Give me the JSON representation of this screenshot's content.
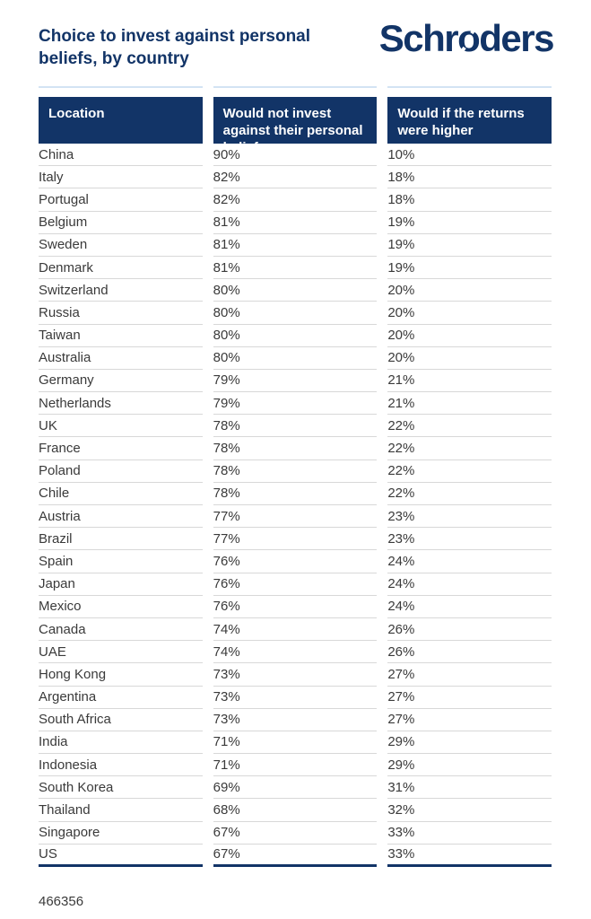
{
  "colors": {
    "navy": "#123467",
    "accent_light_blue": "#d3e3f4",
    "row_line": "#d8d8d8",
    "body_text": "#3a3a3a",
    "background": "#ffffff"
  },
  "header": {
    "title": "Choice to invest against personal beliefs, by country"
  },
  "logo": {
    "full": "Schroders",
    "part1": "Schr",
    "o": "o",
    "part2": "ders"
  },
  "table": {
    "columns": [
      "Location",
      "Would not invest against their personal beliefs",
      "Would if the returns were higher"
    ],
    "rows": [
      {
        "location": "China",
        "no_invest": "90%",
        "would_if_higher": "10%"
      },
      {
        "location": "Italy",
        "no_invest": "82%",
        "would_if_higher": "18%"
      },
      {
        "location": "Portugal",
        "no_invest": "82%",
        "would_if_higher": "18%"
      },
      {
        "location": "Belgium",
        "no_invest": "81%",
        "would_if_higher": "19%"
      },
      {
        "location": "Sweden",
        "no_invest": "81%",
        "would_if_higher": "19%"
      },
      {
        "location": "Denmark",
        "no_invest": "81%",
        "would_if_higher": "19%"
      },
      {
        "location": "Switzerland",
        "no_invest": "80%",
        "would_if_higher": "20%"
      },
      {
        "location": "Russia",
        "no_invest": "80%",
        "would_if_higher": "20%"
      },
      {
        "location": "Taiwan",
        "no_invest": "80%",
        "would_if_higher": "20%"
      },
      {
        "location": "Australia",
        "no_invest": "80%",
        "would_if_higher": "20%"
      },
      {
        "location": "Germany",
        "no_invest": "79%",
        "would_if_higher": "21%"
      },
      {
        "location": "Netherlands",
        "no_invest": "79%",
        "would_if_higher": "21%"
      },
      {
        "location": "UK",
        "no_invest": "78%",
        "would_if_higher": "22%"
      },
      {
        "location": "France",
        "no_invest": "78%",
        "would_if_higher": "22%"
      },
      {
        "location": "Poland",
        "no_invest": "78%",
        "would_if_higher": "22%"
      },
      {
        "location": "Chile",
        "no_invest": "78%",
        "would_if_higher": "22%"
      },
      {
        "location": "Austria",
        "no_invest": "77%",
        "would_if_higher": "23%"
      },
      {
        "location": "Brazil",
        "no_invest": "77%",
        "would_if_higher": "23%"
      },
      {
        "location": "Spain",
        "no_invest": "76%",
        "would_if_higher": "24%"
      },
      {
        "location": "Japan",
        "no_invest": "76%",
        "would_if_higher": "24%"
      },
      {
        "location": "Mexico",
        "no_invest": "76%",
        "would_if_higher": "24%"
      },
      {
        "location": "Canada",
        "no_invest": "74%",
        "would_if_higher": "26%"
      },
      {
        "location": "UAE",
        "no_invest": "74%",
        "would_if_higher": "26%"
      },
      {
        "location": "Hong Kong",
        "no_invest": "73%",
        "would_if_higher": "27%"
      },
      {
        "location": "Argentina",
        "no_invest": "73%",
        "would_if_higher": "27%"
      },
      {
        "location": "South Africa",
        "no_invest": "73%",
        "would_if_higher": "27%"
      },
      {
        "location": "India",
        "no_invest": "71%",
        "would_if_higher": "29%"
      },
      {
        "location": "Indonesia",
        "no_invest": "71%",
        "would_if_higher": "29%"
      },
      {
        "location": "South Korea",
        "no_invest": "69%",
        "would_if_higher": "31%"
      },
      {
        "location": "Thailand",
        "no_invest": "68%",
        "would_if_higher": "32%"
      },
      {
        "location": "Singapore",
        "no_invest": "67%",
        "would_if_higher": "33%"
      },
      {
        "location": "US",
        "no_invest": "67%",
        "would_if_higher": "33%"
      }
    ]
  },
  "footer": {
    "id": "466356"
  },
  "chart_data": {
    "type": "table",
    "title": "Choice to invest against personal beliefs, by country",
    "columns": [
      "Location",
      "Would not invest against their personal beliefs",
      "Would if the returns were higher"
    ],
    "categories": [
      "China",
      "Italy",
      "Portugal",
      "Belgium",
      "Sweden",
      "Denmark",
      "Switzerland",
      "Russia",
      "Taiwan",
      "Australia",
      "Germany",
      "Netherlands",
      "UK",
      "France",
      "Poland",
      "Chile",
      "Austria",
      "Brazil",
      "Spain",
      "Japan",
      "Mexico",
      "Canada",
      "UAE",
      "Hong Kong",
      "Argentina",
      "South Africa",
      "India",
      "Indonesia",
      "South Korea",
      "Thailand",
      "Singapore",
      "US"
    ],
    "series": [
      {
        "name": "Would not invest against their personal beliefs",
        "values": [
          90,
          82,
          82,
          81,
          81,
          81,
          80,
          80,
          80,
          80,
          79,
          79,
          78,
          78,
          78,
          78,
          77,
          77,
          76,
          76,
          76,
          74,
          74,
          73,
          73,
          73,
          71,
          71,
          69,
          68,
          67,
          67
        ]
      },
      {
        "name": "Would if the returns were higher",
        "values": [
          10,
          18,
          18,
          19,
          19,
          19,
          20,
          20,
          20,
          20,
          21,
          21,
          22,
          22,
          22,
          22,
          23,
          23,
          24,
          24,
          24,
          26,
          26,
          27,
          27,
          27,
          29,
          29,
          31,
          32,
          33,
          33
        ]
      }
    ],
    "unit": "%",
    "footnote_id": "466356"
  }
}
